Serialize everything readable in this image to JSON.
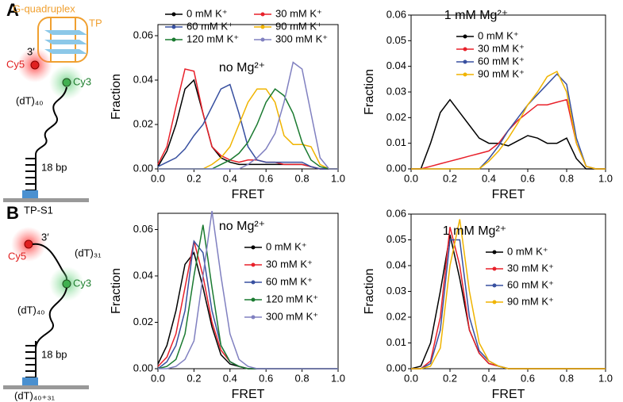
{
  "panel_labels": [
    "A",
    "B"
  ],
  "diagram_a": {
    "quadruplex": "G-quadruplex",
    "tp": "TP",
    "end": "3′",
    "cy5": "Cy5",
    "cy3": "Cy3",
    "linker": "(dT)₄₀",
    "duplex": "18 bp",
    "name": "TP-S1"
  },
  "diagram_b": {
    "end": "3′",
    "tail": "(dT)₃₁",
    "cy5": "Cy5",
    "cy3": "Cy3",
    "linker": "(dT)₄₀",
    "duplex": "18 bp",
    "name": "(dT)₄₀₊₃₁"
  },
  "chart_data": [
    {
      "type": "line",
      "annotation": "no Mg²⁺",
      "x_label": "FRET",
      "y_label": "Fraction",
      "x": [
        0,
        0.05,
        0.1,
        0.15,
        0.2,
        0.25,
        0.3,
        0.35,
        0.4,
        0.45,
        0.5,
        0.55,
        0.6,
        0.65,
        0.7,
        0.75,
        0.8,
        0.85,
        0.9,
        0.95,
        1.0
      ],
      "xlim": [
        0,
        1
      ],
      "ylim": [
        0,
        0.065
      ],
      "xticks": [
        {
          "value": 0,
          "label": "0.0"
        },
        0.2,
        0.4,
        0.6,
        0.8,
        {
          "value": 1,
          "label": "1.0"
        }
      ],
      "yticks": [
        {
          "value": 0,
          "label": "0.00"
        },
        0.02,
        0.04,
        0.06
      ],
      "series": [
        {
          "name": "0 mM K⁺",
          "color": "#000000",
          "values": [
            0.001,
            0.008,
            0.02,
            0.036,
            0.04,
            0.025,
            0.01,
            0.005,
            0.003,
            0.002,
            0.002,
            0.002,
            0.002,
            0.002,
            0.002,
            0.002,
            0.002,
            0.001,
            0,
            0,
            0
          ]
        },
        {
          "name": "30 mM K⁺",
          "color": "#e8202a",
          "values": [
            0.002,
            0.01,
            0.028,
            0.045,
            0.044,
            0.025,
            0.01,
            0.006,
            0.004,
            0.003,
            0.004,
            0.004,
            0.003,
            0.003,
            0.002,
            0.002,
            0.002,
            0.001,
            0,
            0,
            0
          ]
        },
        {
          "name": "60 mM K⁺",
          "color": "#3850a0",
          "values": [
            0.001,
            0.003,
            0.005,
            0.009,
            0.015,
            0.02,
            0.028,
            0.036,
            0.038,
            0.025,
            0.01,
            0.004,
            0.003,
            0.003,
            0.003,
            0.003,
            0.003,
            0.001,
            0,
            0,
            0
          ]
        },
        {
          "name": "90 mM K⁺",
          "color": "#f0b400",
          "values": [
            0,
            0,
            0,
            0,
            0,
            0,
            0.002,
            0.005,
            0.01,
            0.02,
            0.03,
            0.036,
            0.036,
            0.03,
            0.015,
            0.011,
            0.011,
            0.01,
            0.002,
            0,
            0
          ]
        },
        {
          "name": "120 mM K⁺",
          "color": "#1a7a30",
          "values": [
            0,
            0,
            0,
            0,
            0,
            0,
            0,
            0.002,
            0.004,
            0.007,
            0.012,
            0.02,
            0.03,
            0.036,
            0.033,
            0.025,
            0.012,
            0.004,
            0.001,
            0,
            0
          ]
        },
        {
          "name": "300 mM K⁺",
          "color": "#8080c0",
          "values": [
            0,
            0,
            0,
            0,
            0,
            0,
            0,
            0,
            0,
            0,
            0.002,
            0.005,
            0.009,
            0.016,
            0.03,
            0.048,
            0.045,
            0.025,
            0.005,
            0,
            0
          ]
        }
      ]
    },
    {
      "type": "line",
      "annotation": "1 mM Mg²⁺",
      "x_label": "FRET",
      "y_label": "Fraction",
      "x": [
        0,
        0.05,
        0.1,
        0.15,
        0.2,
        0.25,
        0.3,
        0.35,
        0.4,
        0.45,
        0.5,
        0.55,
        0.6,
        0.65,
        0.7,
        0.75,
        0.8,
        0.85,
        0.9,
        0.95,
        1.0
      ],
      "xlim": [
        0,
        1
      ],
      "ylim": [
        0,
        0.06
      ],
      "xticks": [
        {
          "value": 0,
          "label": "0.0"
        },
        0.2,
        0.4,
        0.6,
        0.8,
        {
          "value": 1,
          "label": "1.0"
        }
      ],
      "yticks": [
        {
          "value": 0,
          "label": "0.00"
        },
        0.01,
        0.02,
        0.03,
        0.04,
        0.05,
        0.06
      ],
      "series": [
        {
          "name": "0 mM K⁺",
          "color": "#000000",
          "values": [
            0,
            0,
            0.01,
            0.022,
            0.027,
            0.022,
            0.017,
            0.012,
            0.01,
            0.01,
            0.009,
            0.011,
            0.013,
            0.012,
            0.01,
            0.01,
            0.012,
            0.004,
            0,
            0,
            0
          ]
        },
        {
          "name": "30 mM K⁺",
          "color": "#e8202a",
          "values": [
            0,
            0,
            0.001,
            0.002,
            0.003,
            0.004,
            0.005,
            0.006,
            0.007,
            0.01,
            0.015,
            0.019,
            0.022,
            0.025,
            0.025,
            0.026,
            0.027,
            0.01,
            0.001,
            0,
            0
          ]
        },
        {
          "name": "60 mM K⁺",
          "color": "#3850a0",
          "values": [
            0,
            0,
            0,
            0,
            0,
            0,
            0,
            0,
            0.004,
            0.009,
            0.015,
            0.02,
            0.025,
            0.029,
            0.033,
            0.037,
            0.033,
            0.012,
            0.001,
            0,
            0
          ]
        },
        {
          "name": "90 mM K⁺",
          "color": "#f0b400",
          "values": [
            0,
            0,
            0,
            0,
            0,
            0,
            0,
            0,
            0.003,
            0.007,
            0.012,
            0.018,
            0.025,
            0.03,
            0.036,
            0.038,
            0.03,
            0.01,
            0.001,
            0,
            0
          ]
        }
      ]
    },
    {
      "type": "line",
      "annotation": "no Mg²⁺",
      "x_label": "FRET",
      "y_label": "Fraction",
      "x": [
        0,
        0.05,
        0.1,
        0.15,
        0.2,
        0.25,
        0.3,
        0.35,
        0.4,
        0.45,
        0.5,
        0.55,
        0.6,
        0.65,
        0.7,
        0.75,
        0.8,
        0.85,
        0.9,
        0.95,
        1.0
      ],
      "xlim": [
        0,
        1
      ],
      "ylim": [
        0,
        0.067
      ],
      "xticks": [
        {
          "value": 0,
          "label": "0.0"
        },
        0.2,
        0.4,
        0.6,
        0.8,
        {
          "value": 1,
          "label": "1.0"
        }
      ],
      "yticks": [
        {
          "value": 0,
          "label": "0.00"
        },
        0.02,
        0.04,
        0.06
      ],
      "series": [
        {
          "name": "0 mM K⁺",
          "color": "#000000",
          "values": [
            0.002,
            0.01,
            0.025,
            0.045,
            0.05,
            0.035,
            0.018,
            0.006,
            0.002,
            0.001,
            0,
            0,
            0,
            0,
            0,
            0,
            0,
            0,
            0,
            0,
            0
          ]
        },
        {
          "name": "30 mM K⁺",
          "color": "#e8202a",
          "values": [
            0.001,
            0.005,
            0.015,
            0.035,
            0.055,
            0.04,
            0.02,
            0.008,
            0.003,
            0.001,
            0,
            0,
            0,
            0,
            0,
            0,
            0,
            0,
            0,
            0,
            0
          ]
        },
        {
          "name": "60 mM K⁺",
          "color": "#3850a0",
          "values": [
            0,
            0.003,
            0.01,
            0.025,
            0.055,
            0.05,
            0.025,
            0.01,
            0.003,
            0.001,
            0,
            0,
            0,
            0,
            0,
            0,
            0,
            0,
            0,
            0,
            0
          ]
        },
        {
          "name": "120 mM K⁺",
          "color": "#1a7a30",
          "values": [
            0,
            0.001,
            0.004,
            0.015,
            0.04,
            0.062,
            0.035,
            0.01,
            0.003,
            0.001,
            0,
            0,
            0,
            0,
            0,
            0,
            0,
            0,
            0,
            0,
            0
          ]
        },
        {
          "name": "300 mM K⁺",
          "color": "#8080c0",
          "values": [
            0,
            0,
            0.001,
            0.004,
            0.012,
            0.04,
            0.068,
            0.04,
            0.015,
            0.004,
            0.001,
            0,
            0,
            0,
            0,
            0,
            0,
            0,
            0,
            0,
            0
          ]
        }
      ]
    },
    {
      "type": "line",
      "annotation": "1 mM Mg²⁺",
      "x_label": "FRET",
      "y_label": "Fraction",
      "x": [
        0,
        0.05,
        0.1,
        0.15,
        0.2,
        0.25,
        0.3,
        0.35,
        0.4,
        0.45,
        0.5,
        0.55,
        0.6,
        0.65,
        0.7,
        0.75,
        0.8,
        0.85,
        0.9,
        0.95,
        1.0
      ],
      "xlim": [
        0,
        1
      ],
      "ylim": [
        0,
        0.06
      ],
      "xticks": [
        {
          "value": 0,
          "label": "0.0"
        },
        0.2,
        0.4,
        0.6,
        0.8,
        {
          "value": 1,
          "label": "1.0"
        }
      ],
      "yticks": [
        {
          "value": 0,
          "label": "0.00"
        },
        0.01,
        0.02,
        0.03,
        0.04,
        0.05,
        0.06
      ],
      "series": [
        {
          "name": "0 mM K⁺",
          "color": "#000000",
          "values": [
            0,
            0.001,
            0.01,
            0.03,
            0.052,
            0.035,
            0.015,
            0.006,
            0.002,
            0.001,
            0,
            0,
            0,
            0,
            0,
            0,
            0,
            0,
            0,
            0,
            0
          ]
        },
        {
          "name": "30 mM K⁺",
          "color": "#e8202a",
          "values": [
            0,
            0,
            0.003,
            0.02,
            0.055,
            0.04,
            0.015,
            0.006,
            0.002,
            0.001,
            0,
            0,
            0,
            0,
            0,
            0,
            0,
            0,
            0,
            0,
            0
          ]
        },
        {
          "name": "60 mM K⁺",
          "color": "#3850a0",
          "values": [
            0,
            0,
            0.002,
            0.015,
            0.05,
            0.05,
            0.02,
            0.007,
            0.003,
            0.001,
            0,
            0,
            0,
            0,
            0,
            0,
            0,
            0,
            0,
            0,
            0
          ]
        },
        {
          "name": "90 mM K⁺",
          "color": "#f0b400",
          "values": [
            0,
            0,
            0.001,
            0.008,
            0.04,
            0.058,
            0.03,
            0.01,
            0.003,
            0.001,
            0,
            0,
            0,
            0,
            0,
            0,
            0,
            0,
            0,
            0,
            0
          ]
        }
      ]
    }
  ]
}
